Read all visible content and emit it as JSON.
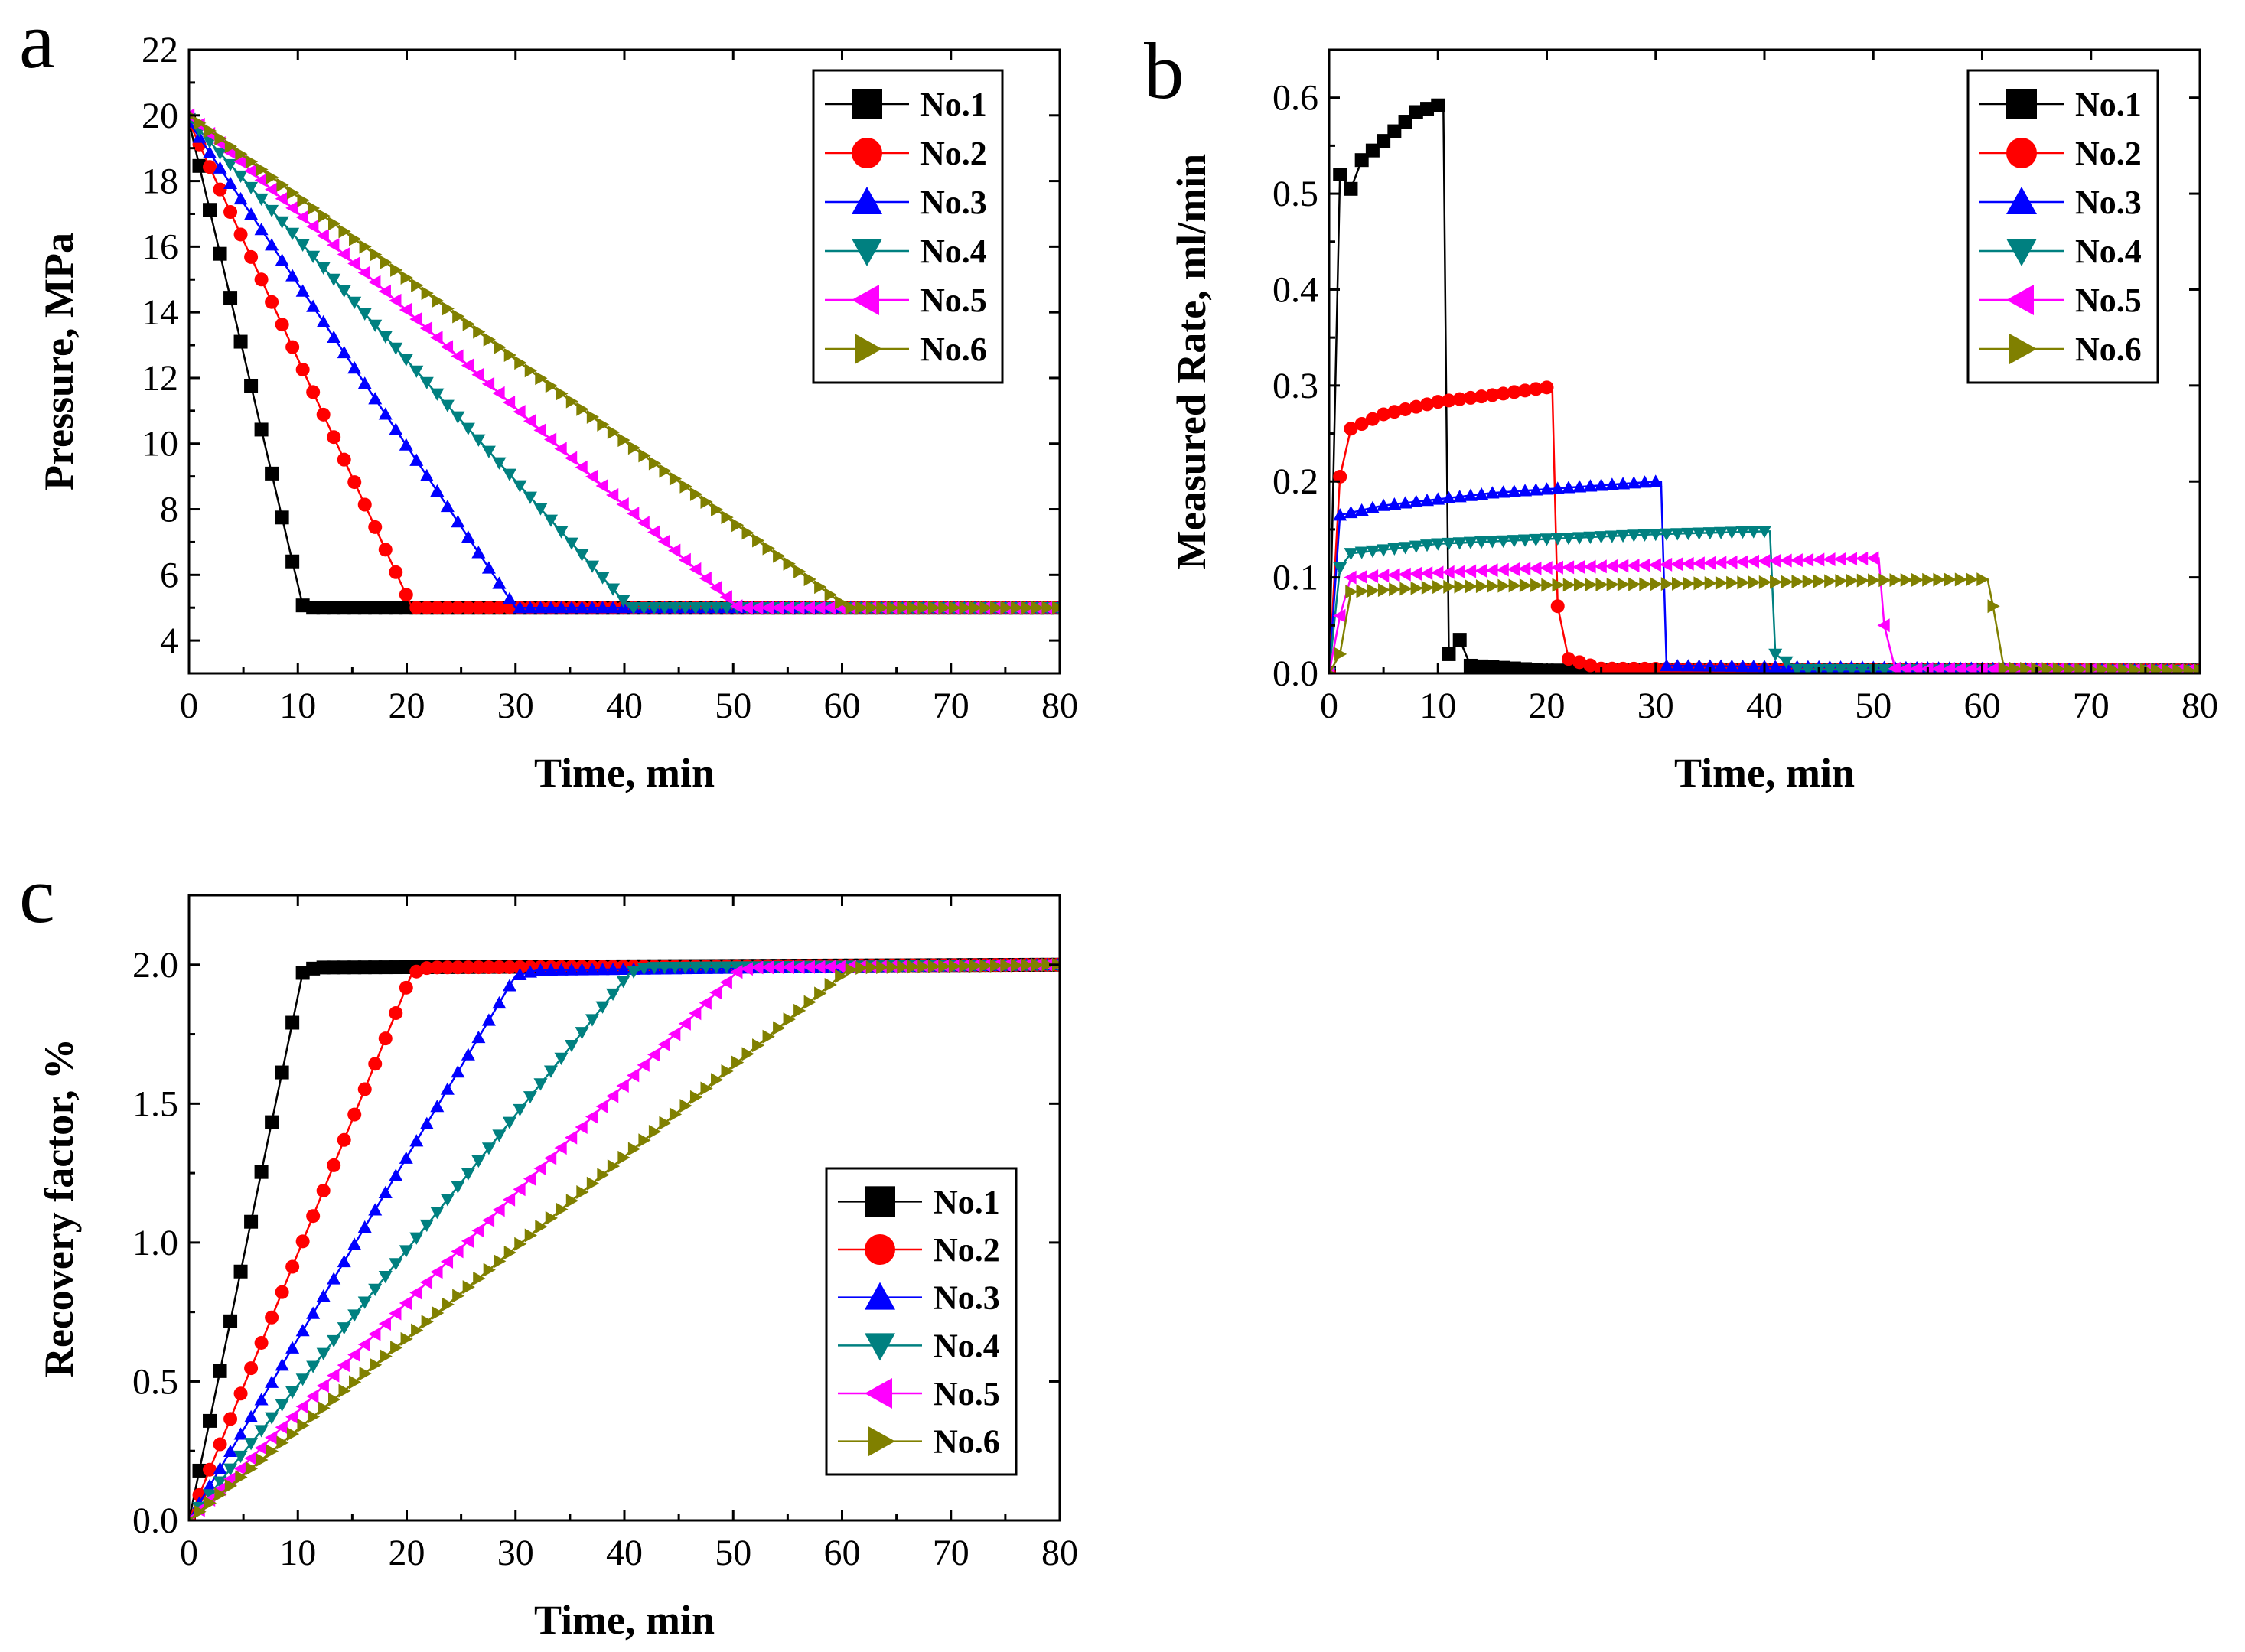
{
  "figure": {
    "legend_entries": [
      "No.1",
      "No.2",
      "No.3",
      "No.4",
      "No.5",
      "No.6"
    ]
  },
  "series_styles": [
    {
      "name": "No.1",
      "color": "#000000",
      "marker": "square"
    },
    {
      "name": "No.2",
      "color": "#ff0000",
      "marker": "circle"
    },
    {
      "name": "No.3",
      "color": "#0000ff",
      "marker": "triangle-up"
    },
    {
      "name": "No.4",
      "color": "#008080",
      "marker": "triangle-down"
    },
    {
      "name": "No.5",
      "color": "#ff00ff",
      "marker": "triangle-left"
    },
    {
      "name": "No.6",
      "color": "#808000",
      "marker": "triangle-right"
    }
  ],
  "chart_data": [
    {
      "panel": "a",
      "type": "line",
      "xlabel": "Time, min",
      "ylabel": "Pressure, MPa",
      "xlim": [
        0,
        80
      ],
      "ylim": [
        3,
        22
      ],
      "xticks": [
        0,
        10,
        20,
        30,
        40,
        50,
        60,
        70,
        80
      ],
      "yticks": [
        4,
        6,
        8,
        10,
        12,
        14,
        16,
        18,
        20,
        22
      ],
      "legend_position": "top-right",
      "series": [
        {
          "name": "No.1",
          "points": [
            [
              0,
              19.8
            ],
            [
              10.5,
              5
            ],
            [
              80,
              5
            ]
          ]
        },
        {
          "name": "No.2",
          "points": [
            [
              0,
              19.8
            ],
            [
              20.5,
              5
            ],
            [
              80,
              5
            ]
          ]
        },
        {
          "name": "No.3",
          "points": [
            [
              0,
              19.8
            ],
            [
              30,
              5
            ],
            [
              80,
              5
            ]
          ]
        },
        {
          "name": "No.4",
          "points": [
            [
              0,
              19.9
            ],
            [
              40.5,
              5
            ],
            [
              80,
              5
            ]
          ]
        },
        {
          "name": "No.5",
          "points": [
            [
              0,
              20
            ],
            [
              50.5,
              5
            ],
            [
              80,
              5
            ]
          ]
        },
        {
          "name": "No.6",
          "points": [
            [
              0,
              20
            ],
            [
              60.5,
              5
            ],
            [
              80,
              5
            ]
          ]
        }
      ]
    },
    {
      "panel": "b",
      "type": "line",
      "xlabel": "Time, min",
      "ylabel": "Measured Rate, ml/min",
      "xlim": [
        0,
        80
      ],
      "ylim": [
        0,
        0.65
      ],
      "xticks": [
        0,
        10,
        20,
        30,
        40,
        50,
        60,
        70,
        80
      ],
      "yticks": [
        0.0,
        0.1,
        0.2,
        0.3,
        0.4,
        0.5,
        0.6
      ],
      "legend_position": "top-right",
      "series": [
        {
          "name": "No.1",
          "points": [
            [
              0,
              0
            ],
            [
              1,
              0.52
            ],
            [
              2,
              0.505
            ],
            [
              3,
              0.535
            ],
            [
              5,
              0.555
            ],
            [
              8,
              0.585
            ],
            [
              10,
              0.592
            ],
            [
              10.5,
              0.59
            ],
            [
              11,
              0.02
            ],
            [
              12,
              0.035
            ],
            [
              13,
              0.008
            ],
            [
              20,
              0.003
            ],
            [
              80,
              0.003
            ]
          ]
        },
        {
          "name": "No.2",
          "points": [
            [
              0,
              0
            ],
            [
              1,
              0.205
            ],
            [
              2,
              0.255
            ],
            [
              5,
              0.27
            ],
            [
              10,
              0.283
            ],
            [
              15,
              0.29
            ],
            [
              20,
              0.298
            ],
            [
              20.5,
              0.3
            ],
            [
              21,
              0.07
            ],
            [
              22,
              0.015
            ],
            [
              25,
              0.005
            ],
            [
              80,
              0.003
            ]
          ]
        },
        {
          "name": "No.3",
          "points": [
            [
              0,
              0
            ],
            [
              1,
              0.165
            ],
            [
              5,
              0.175
            ],
            [
              15,
              0.188
            ],
            [
              25,
              0.196
            ],
            [
              30,
              0.2
            ],
            [
              30.5,
              0.2
            ],
            [
              31,
              0.008
            ],
            [
              80,
              0.003
            ]
          ]
        },
        {
          "name": "No.4",
          "points": [
            [
              0,
              0
            ],
            [
              1,
              0.11
            ],
            [
              2,
              0.125
            ],
            [
              10,
              0.135
            ],
            [
              20,
              0.14
            ],
            [
              30,
              0.145
            ],
            [
              40,
              0.148
            ],
            [
              40.5,
              0.148
            ],
            [
              41,
              0.02
            ],
            [
              43,
              0.004
            ],
            [
              80,
              0.003
            ]
          ]
        },
        {
          "name": "No.5",
          "points": [
            [
              0,
              0
            ],
            [
              1,
              0.06
            ],
            [
              2,
              0.1
            ],
            [
              10,
              0.105
            ],
            [
              20,
              0.11
            ],
            [
              30,
              0.113
            ],
            [
              40,
              0.117
            ],
            [
              50,
              0.12
            ],
            [
              50.5,
              0.12
            ],
            [
              51,
              0.05
            ],
            [
              52,
              0.005
            ],
            [
              80,
              0.003
            ]
          ]
        },
        {
          "name": "No.6",
          "points": [
            [
              0,
              0
            ],
            [
              1,
              0.02
            ],
            [
              2,
              0.085
            ],
            [
              10,
              0.09
            ],
            [
              20,
              0.092
            ],
            [
              30,
              0.093
            ],
            [
              40,
              0.095
            ],
            [
              50,
              0.097
            ],
            [
              60,
              0.098
            ],
            [
              60.5,
              0.098
            ],
            [
              61,
              0.07
            ],
            [
              62,
              0.005
            ],
            [
              80,
              0.003
            ]
          ]
        }
      ]
    },
    {
      "panel": "c",
      "type": "line",
      "xlabel": "Time, min",
      "ylabel": "Recovery factor, %",
      "xlim": [
        0,
        80
      ],
      "ylim": [
        0,
        2.25
      ],
      "xticks": [
        0,
        10,
        20,
        30,
        40,
        50,
        60,
        70,
        80
      ],
      "yticks": [
        0.0,
        0.5,
        1.0,
        1.5,
        2.0
      ],
      "legend_position": "lower-right",
      "series": [
        {
          "name": "No.1",
          "points": [
            [
              0,
              0
            ],
            [
              10.5,
              1.98
            ],
            [
              12,
              1.99
            ],
            [
              80,
              2.0
            ]
          ]
        },
        {
          "name": "No.2",
          "points": [
            [
              0,
              0
            ],
            [
              20.5,
              1.97
            ],
            [
              22,
              1.99
            ],
            [
              80,
              2.0
            ]
          ]
        },
        {
          "name": "No.3",
          "points": [
            [
              0,
              0
            ],
            [
              30,
              1.96
            ],
            [
              32,
              1.98
            ],
            [
              80,
              2.0
            ]
          ]
        },
        {
          "name": "No.4",
          "points": [
            [
              0,
              0
            ],
            [
              40.5,
              1.97
            ],
            [
              42,
              1.99
            ],
            [
              80,
              2.0
            ]
          ]
        },
        {
          "name": "No.5",
          "points": [
            [
              0,
              0
            ],
            [
              50.5,
              1.98
            ],
            [
              52,
              1.99
            ],
            [
              80,
              2.0
            ]
          ]
        },
        {
          "name": "No.6",
          "points": [
            [
              0,
              0
            ],
            [
              60.5,
              1.98
            ],
            [
              62,
              1.99
            ],
            [
              80,
              2.0
            ]
          ]
        }
      ]
    }
  ]
}
